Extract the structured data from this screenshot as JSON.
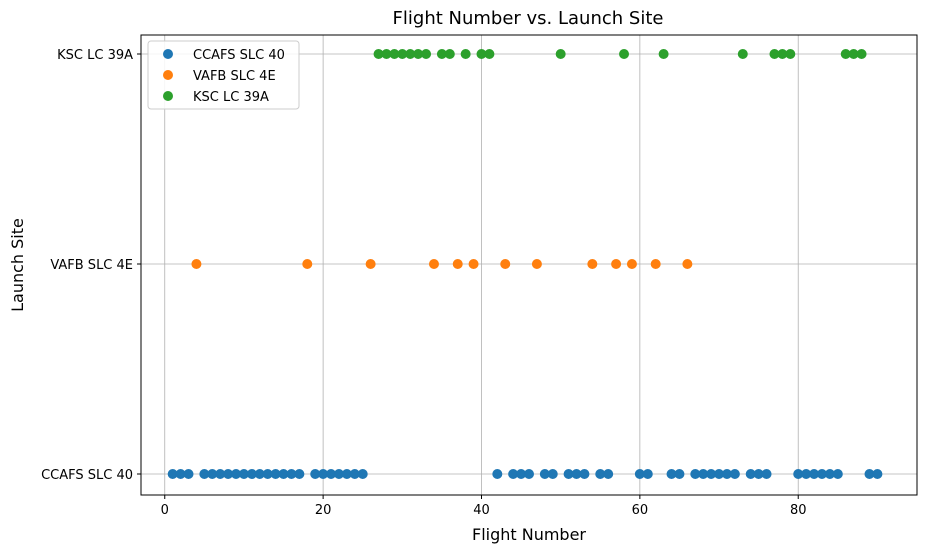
{
  "chart_data": {
    "type": "scatter",
    "title": "Flight Number vs. Launch Site",
    "xlabel": "Flight Number",
    "ylabel": "Launch Site",
    "xlim": [
      -3,
      95
    ],
    "xticks": [
      0,
      20,
      40,
      60,
      80
    ],
    "categories": [
      "CCAFS SLC 40",
      "VAFB SLC 4E",
      "KSC LC 39A"
    ],
    "grid": true,
    "legend_position": "top-left",
    "series": [
      {
        "name": "CCAFS SLC 40",
        "color": "#1f77b4",
        "category": "CCAFS SLC 40",
        "x": [
          1,
          2,
          3,
          5,
          6,
          7,
          8,
          9,
          10,
          11,
          12,
          13,
          14,
          15,
          16,
          17,
          19,
          20,
          21,
          22,
          23,
          24,
          25,
          42,
          44,
          45,
          46,
          48,
          49,
          51,
          52,
          53,
          55,
          56,
          60,
          61,
          64,
          65,
          67,
          68,
          69,
          70,
          71,
          72,
          74,
          75,
          76,
          80,
          81,
          82,
          83,
          84,
          85,
          89,
          90
        ]
      },
      {
        "name": "VAFB SLC 4E",
        "color": "#ff7f0e",
        "category": "VAFB SLC 4E",
        "x": [
          4,
          18,
          26,
          34,
          37,
          39,
          43,
          47,
          54,
          57,
          59,
          62,
          66
        ]
      },
      {
        "name": "KSC LC 39A",
        "color": "#2ca02c",
        "category": "KSC LC 39A",
        "x": [
          27,
          28,
          29,
          30,
          31,
          32,
          33,
          35,
          36,
          38,
          40,
          41,
          50,
          58,
          63,
          73,
          77,
          78,
          79,
          86,
          87,
          88
        ]
      }
    ]
  }
}
